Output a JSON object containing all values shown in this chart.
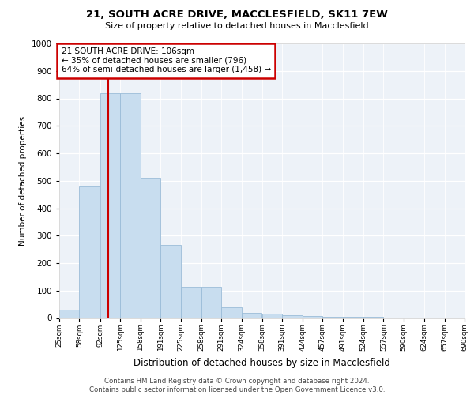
{
  "title": "21, SOUTH ACRE DRIVE, MACCLESFIELD, SK11 7EW",
  "subtitle": "Size of property relative to detached houses in Macclesfield",
  "xlabel": "Distribution of detached houses by size in Macclesfield",
  "ylabel": "Number of detached properties",
  "bar_color": "#c8ddef",
  "bar_edge_color": "#9bbcd8",
  "annotation_box_text": "21 SOUTH ACRE DRIVE: 106sqm\n← 35% of detached houses are smaller (796)\n64% of semi-detached houses are larger (1,458) →",
  "annotation_box_color": "#ffffff",
  "annotation_box_edge_color": "#cc0000",
  "vline_color": "#cc0000",
  "footer_text": "Contains HM Land Registry data © Crown copyright and database right 2024.\nContains public sector information licensed under the Open Government Licence v3.0.",
  "background_color": "#edf2f8",
  "ylim": [
    0,
    1000
  ],
  "yticks": [
    0,
    100,
    200,
    300,
    400,
    500,
    600,
    700,
    800,
    900,
    1000
  ],
  "bins_start": [
    25,
    58,
    92,
    125,
    158,
    191,
    225,
    258,
    291,
    324,
    358,
    391,
    424,
    457,
    491,
    524,
    557,
    590,
    624,
    657
  ],
  "bin_width": 33,
  "bar_heights": [
    30,
    480,
    820,
    820,
    510,
    265,
    115,
    115,
    40,
    20,
    15,
    10,
    8,
    5,
    4,
    3,
    2,
    2,
    1,
    1
  ],
  "vline_bin_index": 2,
  "tick_labels": [
    "25sqm",
    "58sqm",
    "92sqm",
    "125sqm",
    "158sqm",
    "191sqm",
    "225sqm",
    "258sqm",
    "291sqm",
    "324sqm",
    "358sqm",
    "391sqm",
    "424sqm",
    "457sqm",
    "491sqm",
    "524sqm",
    "557sqm",
    "590sqm",
    "624sqm",
    "657sqm",
    "690sqm"
  ]
}
